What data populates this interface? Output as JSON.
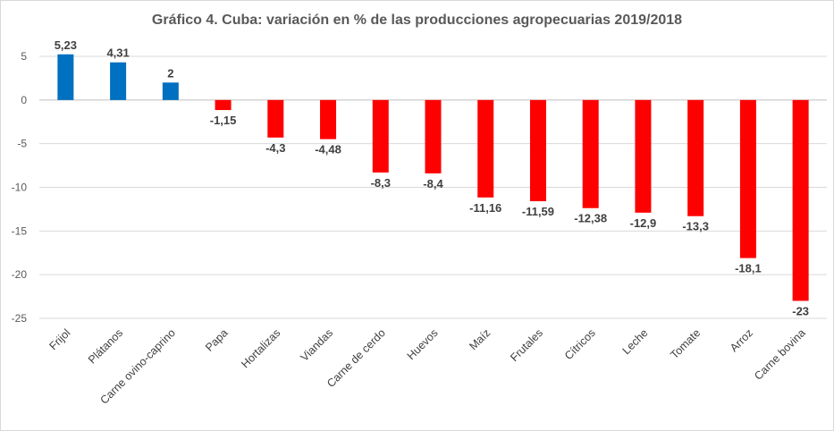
{
  "chart_data": {
    "type": "bar",
    "title": "Gráfico 4. Cuba: variación en % de las producciones agropecuarias 2019/2018",
    "xlabel": "",
    "ylabel": "",
    "ylim": [
      -25,
      5
    ],
    "yticks": [
      "5",
      "0",
      "-5",
      "-10",
      "-15",
      "-20",
      "-25"
    ],
    "ytick_values": [
      5,
      0,
      -5,
      -10,
      -15,
      -20,
      -25
    ],
    "grid": true,
    "legend": "none",
    "categories": [
      "Frijol",
      "Plátanos",
      "Carne ovino-caprino",
      "Papa",
      "Hortalizas",
      "Viandas",
      "Carne de cerdo",
      "Huevos",
      "Maíz",
      "Frutales",
      "Cítricos",
      "Leche",
      "Tomate",
      "Arroz",
      "Carne bovina"
    ],
    "values": [
      5.23,
      4.31,
      2,
      -1.15,
      -4.3,
      -4.48,
      -8.3,
      -8.4,
      -11.16,
      -11.59,
      -12.38,
      -12.9,
      -13.3,
      -18.1,
      -23
    ],
    "data_labels": [
      "5,23",
      "4,31",
      "2",
      "-1,15",
      "-4,3",
      "-4,48",
      "-8,3",
      "-8,4",
      "-11,16",
      "-11,59",
      "-12,38",
      "-12,9",
      "-13,3",
      "-18,1",
      "-23"
    ],
    "colors": {
      "positive": "#0070c0",
      "negative": "#ff0000",
      "grid": "#d9d9d9",
      "text": "#595959"
    }
  }
}
